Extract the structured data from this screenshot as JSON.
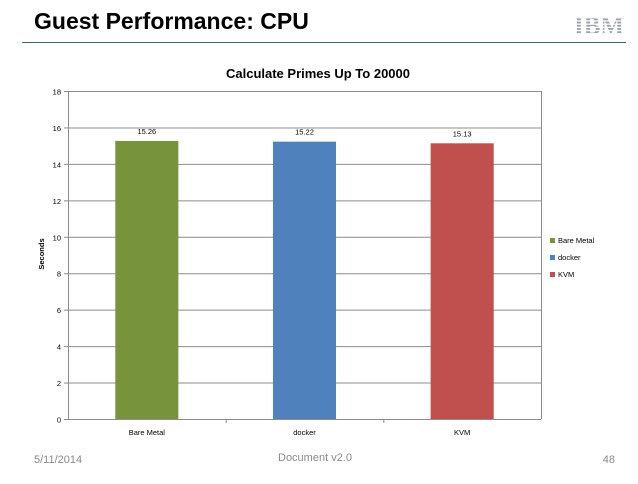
{
  "slide": {
    "title": "Guest Performance: CPU",
    "logo_text": "IBM",
    "footer_date": "5/11/2014",
    "footer_doc": "Document v2.0",
    "page_number": "48"
  },
  "colors": {
    "rule": "#3b5f8a",
    "grid": "#8c8c8c",
    "footer_text": "#8a8a8a"
  },
  "chart_data": {
    "type": "bar",
    "title": "Calculate Primes Up To 20000",
    "xlabel": "",
    "ylabel": "Seconds",
    "ylim": [
      0,
      18
    ],
    "yticks": [
      0,
      2,
      4,
      6,
      8,
      10,
      12,
      14,
      16,
      18
    ],
    "grid": true,
    "legend_position": "right",
    "categories": [
      "Bare Metal",
      "docker",
      "KVM"
    ],
    "series": [
      {
        "name": "Bare Metal",
        "category": "Bare Metal",
        "value": 15.26,
        "label": "15.26",
        "color": "#77933c"
      },
      {
        "name": "docker",
        "category": "docker",
        "value": 15.22,
        "label": "15.22",
        "color": "#4f81bd"
      },
      {
        "name": "KVM",
        "category": "KVM",
        "value": 15.13,
        "label": "15.13",
        "color": "#c0504d"
      }
    ]
  }
}
